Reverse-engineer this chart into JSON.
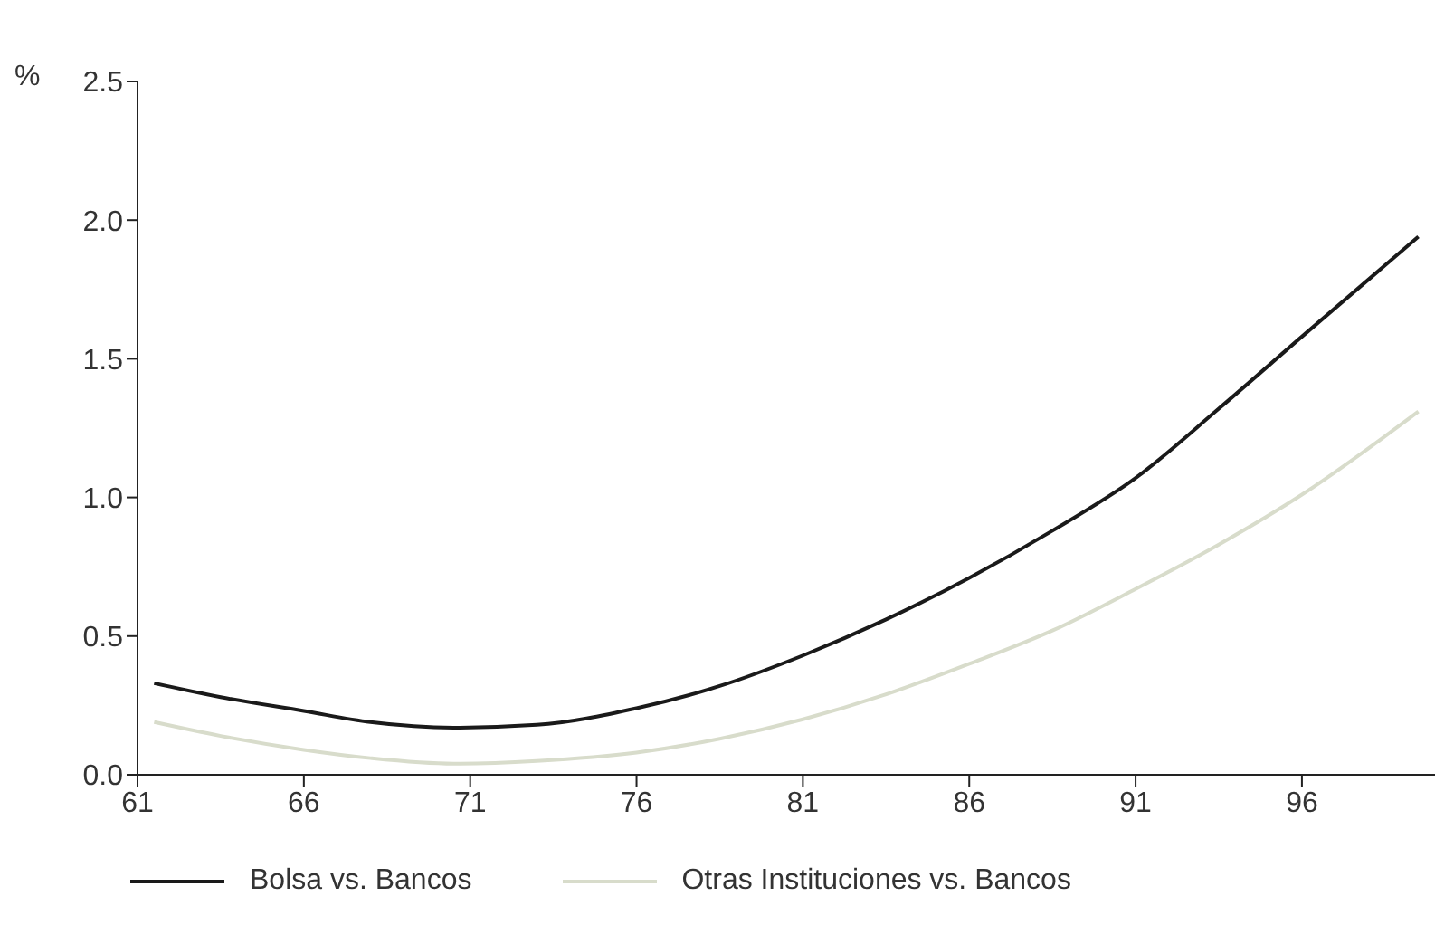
{
  "chart_data": {
    "type": "line",
    "ylabel": "%",
    "x": [
      61.5,
      63.5,
      66,
      68,
      70.5,
      73,
      76,
      78.5,
      81,
      83.5,
      86,
      88.5,
      91,
      93.5,
      96,
      99.5
    ],
    "series": [
      {
        "name": "Bolsa vs. Bancos",
        "color": "#1a1a1a",
        "values": [
          0.33,
          0.28,
          0.23,
          0.19,
          0.17,
          0.18,
          0.24,
          0.32,
          0.43,
          0.56,
          0.71,
          0.88,
          1.07,
          1.32,
          1.58,
          1.94
        ]
      },
      {
        "name": "Otras Instituciones vs. Bancos",
        "color": "#d8dccb",
        "values": [
          0.19,
          0.14,
          0.09,
          0.06,
          0.04,
          0.05,
          0.08,
          0.13,
          0.2,
          0.29,
          0.4,
          0.52,
          0.67,
          0.83,
          1.01,
          1.31
        ]
      }
    ],
    "xlim": [
      61,
      100
    ],
    "xticks": [
      61,
      66,
      71,
      76,
      81,
      86,
      91,
      96
    ],
    "ylim": [
      0,
      2.5
    ],
    "yticks": [
      {
        "value": 0,
        "label": "0.0"
      },
      {
        "value": 0.5,
        "label": "0.5"
      },
      {
        "value": 1,
        "label": "1.0"
      },
      {
        "value": 1.5,
        "label": "1.5"
      },
      {
        "value": 2,
        "label": "2.0"
      },
      {
        "value": 2.5,
        "label": "2.5"
      }
    ],
    "grid": false,
    "legend": "bottom",
    "marker": "none",
    "line_style": "solid"
  }
}
